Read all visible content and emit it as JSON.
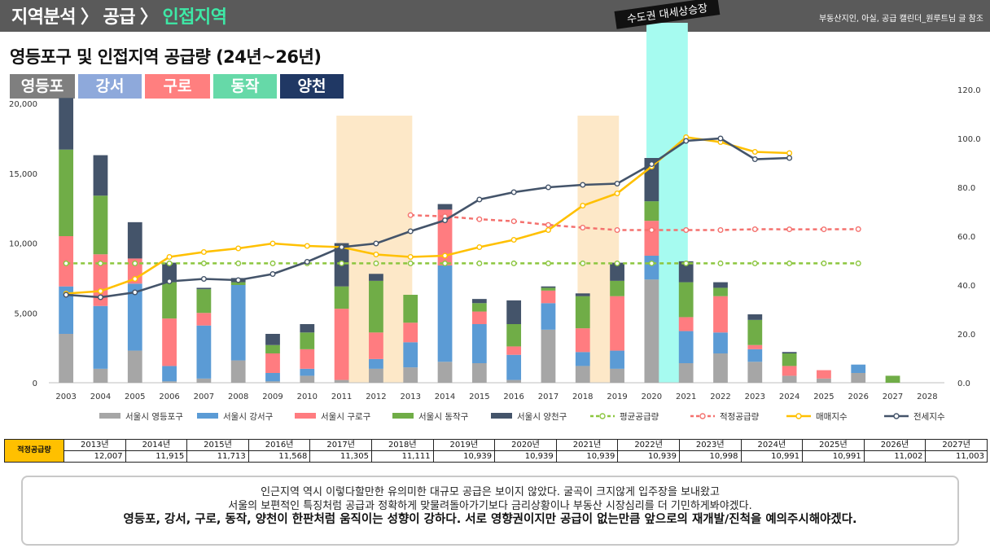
{
  "header": {
    "crumb1": "지역분석",
    "crumb2": "공급",
    "crumb3": "인접지역",
    "separator": "〉",
    "source": "부동산지인, 아실, 공급 캘린더_원루트님 글 참조"
  },
  "title": "영등포구 및 인접지역 공급량 (24년~26년)",
  "district_labels": [
    {
      "label": "영등포",
      "color": "#7f7f7f"
    },
    {
      "label": "강서",
      "color": "#8ea9db"
    },
    {
      "label": "구로",
      "color": "#ff7f7f"
    },
    {
      "label": "동작",
      "color": "#66d9a8"
    },
    {
      "label": "양천",
      "color": "#203864"
    }
  ],
  "chart_data": {
    "type": "bar",
    "stacked": true,
    "categories": [
      "2003",
      "2004",
      "2005",
      "2006",
      "2007",
      "2008",
      "2009",
      "2010",
      "2011",
      "2012",
      "2013",
      "2014",
      "2015",
      "2016",
      "2017",
      "2018",
      "2019",
      "2020",
      "2021",
      "2022",
      "2023",
      "2024",
      "2025",
      "2026",
      "2027",
      "2028"
    ],
    "series": [
      {
        "name": "서울시 영등포구",
        "color": "#a6a6a6",
        "axis": "left",
        "values": [
          3500,
          1000,
          2300,
          100,
          300,
          1600,
          100,
          500,
          200,
          1000,
          1100,
          1500,
          1400,
          200,
          3800,
          1200,
          1000,
          7400,
          1400,
          2100,
          1500,
          500,
          300,
          700,
          0,
          0
        ]
      },
      {
        "name": "서울시 강서구",
        "color": "#5b9bd5",
        "axis": "left",
        "values": [
          3400,
          4500,
          4800,
          1100,
          3800,
          5400,
          600,
          500,
          0,
          700,
          1800,
          6900,
          2800,
          1800,
          1900,
          1000,
          1300,
          1700,
          2300,
          1500,
          900,
          0,
          0,
          600,
          0,
          0
        ]
      },
      {
        "name": "서울시 구로구",
        "color": "#ff7c80",
        "axis": "left",
        "values": [
          3600,
          3700,
          1800,
          3400,
          900,
          0,
          1400,
          1400,
          5100,
          1900,
          1400,
          4000,
          900,
          600,
          900,
          1700,
          3900,
          2500,
          1000,
          2600,
          300,
          700,
          600,
          0,
          0,
          0
        ]
      },
      {
        "name": "서울시 동작구",
        "color": "#70ad47",
        "axis": "left",
        "values": [
          6200,
          4200,
          0,
          2600,
          1700,
          200,
          600,
          1200,
          1600,
          3700,
          2000,
          0,
          600,
          1600,
          200,
          2300,
          1100,
          1400,
          2500,
          600,
          1800,
          900,
          0,
          0,
          500,
          0
        ]
      },
      {
        "name": "서울시 양천구",
        "color": "#44546a",
        "axis": "left",
        "values": [
          3700,
          2900,
          2600,
          1400,
          100,
          300,
          800,
          600,
          3100,
          500,
          0,
          400,
          300,
          1700,
          100,
          200,
          1300,
          3100,
          1500,
          400,
          400,
          100,
          0,
          0,
          0,
          0
        ]
      },
      {
        "name": "평균공급량",
        "type": "line",
        "axis": "left",
        "color": "#8cc63f",
        "dash": true,
        "values": [
          8550,
          8550,
          8550,
          8550,
          8550,
          8550,
          8550,
          8550,
          8550,
          8550,
          8550,
          8550,
          8550,
          8550,
          8550,
          8550,
          8550,
          8550,
          8550,
          8550,
          8550,
          8550,
          8550,
          8550,
          null,
          null
        ]
      },
      {
        "name": "적정공급량",
        "type": "line",
        "axis": "left",
        "color": "#f4716e",
        "dash": true,
        "values": [
          null,
          null,
          null,
          null,
          null,
          null,
          null,
          null,
          null,
          null,
          12007,
          11915,
          11713,
          11568,
          11305,
          11111,
          10939,
          10939,
          10939,
          10939,
          10998,
          10991,
          10991,
          11002,
          null,
          null
        ]
      },
      {
        "name": "매매지수",
        "type": "line",
        "axis": "right",
        "color": "#ffc000",
        "values": [
          36.5,
          37.5,
          42.5,
          51.5,
          53.5,
          55,
          57,
          56,
          55.5,
          52.5,
          51.5,
          52,
          55.5,
          58.5,
          62.5,
          72.5,
          77.5,
          88.5,
          100.5,
          98.5,
          94.5,
          94,
          null,
          null,
          null,
          null
        ]
      },
      {
        "name": "전세지수",
        "type": "line",
        "axis": "right",
        "color": "#44546a",
        "values": [
          36,
          35,
          37,
          41.5,
          42.5,
          42,
          44.5,
          49.5,
          55.5,
          57,
          62,
          66.5,
          75,
          78,
          80,
          81,
          81.5,
          89.5,
          99,
          100,
          91.5,
          92,
          null,
          null,
          null,
          null
        ]
      }
    ],
    "ylim": [
      0,
      21000
    ],
    "yticks": [
      0,
      5000,
      10000,
      15000,
      20000
    ],
    "yticklabels": [
      "0",
      "5,000",
      "10,000",
      "15,000",
      "20,000"
    ],
    "y2lim": [
      0,
      120
    ],
    "y2ticks": [
      0,
      20,
      40,
      60,
      80,
      100,
      120
    ],
    "y2ticklabels": [
      "0.0",
      "20.0",
      "40.0",
      "60.0",
      "80.0",
      "100.0",
      "120.0"
    ],
    "highlights": [
      {
        "from": "2011",
        "to": "2013",
        "color": "#fde8c8",
        "label": ""
      },
      {
        "from": "2018",
        "to": "2019",
        "color": "#fde8c8",
        "label": ""
      },
      {
        "from": "2020",
        "to": "2021",
        "color": "#a6fbf0",
        "label": "수도권 대세상승장"
      }
    ],
    "legend_position": "bottom",
    "grid": false
  },
  "table": {
    "row_label": "적정공급량",
    "years": [
      "2013년",
      "2014년",
      "2015년",
      "2016년",
      "2017년",
      "2018년",
      "2019년",
      "2020년",
      "2021년",
      "2022년",
      "2023년",
      "2024년",
      "2025년",
      "2026년",
      "2027년"
    ],
    "values": [
      "12,007",
      "11,915",
      "11,713",
      "11,568",
      "11,305",
      "11,111",
      "10,939",
      "10,939",
      "10,939",
      "10,939",
      "10,998",
      "10,991",
      "10,991",
      "11,002",
      "11,003"
    ]
  },
  "note": {
    "line1": "인근지역 역시 이렇다할만한 유의미한 대규모 공급은 보이지 않았다. 굴곡이 크지않게 입주장을 보내왔고",
    "line2": "서울의 보편적인 특징처럼 공급과 정확하게 맞물려돌아가기보다 금리상황이나 부동산 시장심리를 더 기민하게봐야겠다.",
    "line3": "영등포, 강서, 구로, 동작, 양천이 한판처럼 움직이는 성향이 강하다. 서로 영향권이지만 공급이 없는만큼 앞으로의 재개발/진척을 예의주시해야겠다."
  }
}
